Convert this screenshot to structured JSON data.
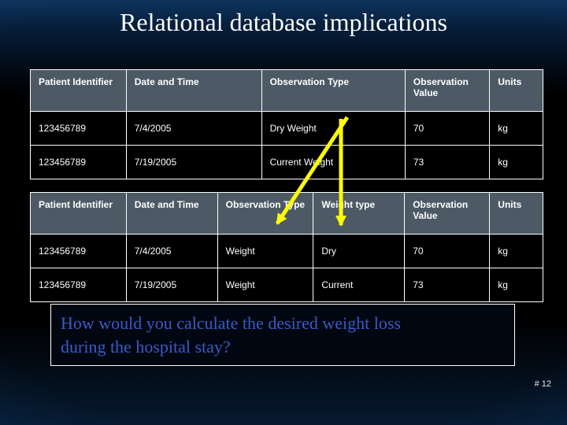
{
  "slide": {
    "title": "Relational database implications",
    "page_number": "# 12"
  },
  "table1": {
    "headers": [
      "Patient Identifier",
      "Date and Time",
      "Observation Type",
      "Observation Value",
      "Units"
    ],
    "rows": [
      [
        "123456789",
        "7/4/2005",
        "Dry Weight",
        "70",
        "kg"
      ],
      [
        "123456789",
        "7/19/2005",
        "Current Weight",
        "73",
        "kg"
      ]
    ]
  },
  "table2": {
    "headers": [
      "Patient Identifier",
      "Date and Time",
      "Observation Type",
      "Weight type",
      "Observation Value",
      "Units"
    ],
    "rows": [
      [
        "123456789",
        "7/4/2005",
        "Weight",
        "Dry",
        "70",
        "kg"
      ],
      [
        "123456789",
        "7/19/2005",
        "Weight",
        "Current",
        "73",
        "kg"
      ]
    ]
  },
  "question": {
    "text": "How would you calculate the desired weight loss during the hospital stay?",
    "lines": [
      "How would you calculate the desired weight loss",
      "during the hospital stay?"
    ]
  },
  "colors": {
    "header_bg": "#4d5a66",
    "cell_bg": "#000000",
    "table_border": "#ffffff",
    "arrow": "#ffff00",
    "question_text": "#3a5bc7",
    "title_text": "#ffffff"
  }
}
